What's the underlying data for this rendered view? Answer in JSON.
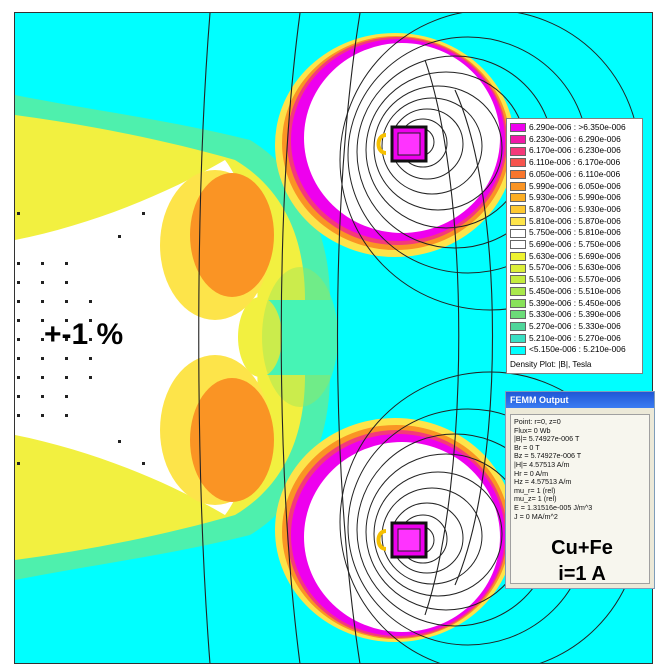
{
  "accuracy_label": "+-1 %",
  "material_label": "Cu+Fe",
  "current_label": "i=1 A",
  "legend": {
    "title": "Density Plot: |B|, Tesla",
    "entries": [
      {
        "label": "6.290e-006 : >6.350e-006",
        "color": "#ee00ee"
      },
      {
        "label": "6.230e-006 : 6.290e-006",
        "color": "#f01aa8"
      },
      {
        "label": "6.170e-006 : 6.230e-006",
        "color": "#f43a7a"
      },
      {
        "label": "6.110e-006 : 6.170e-006",
        "color": "#f6544e"
      },
      {
        "label": "6.050e-006 : 6.110e-006",
        "color": "#f8752c"
      },
      {
        "label": "5.990e-006 : 6.050e-006",
        "color": "#fa9424"
      },
      {
        "label": "5.930e-006 : 5.990e-006",
        "color": "#fcae24"
      },
      {
        "label": "5.870e-006 : 5.930e-006",
        "color": "#fdc830"
      },
      {
        "label": "5.810e-006 : 5.870e-006",
        "color": "#fde44a"
      },
      {
        "label": "5.750e-006 : 5.810e-006",
        "color": "#ffffff"
      },
      {
        "label": "5.690e-006 : 5.750e-006",
        "color": "#ffffff"
      },
      {
        "label": "5.630e-006 : 5.690e-006",
        "color": "#eef230"
      },
      {
        "label": "5.570e-006 : 5.630e-006",
        "color": "#dcef3a"
      },
      {
        "label": "5.510e-006 : 5.570e-006",
        "color": "#c4ec3e"
      },
      {
        "label": "5.450e-006 : 5.510e-006",
        "color": "#a9e84c"
      },
      {
        "label": "5.390e-006 : 5.450e-006",
        "color": "#88e25a"
      },
      {
        "label": "5.330e-006 : 5.390e-006",
        "color": "#6bdc78"
      },
      {
        "label": "5.270e-006 : 5.330e-006",
        "color": "#4fd69a"
      },
      {
        "label": "5.210e-006 : 5.270e-006",
        "color": "#3ae0c4"
      },
      {
        "label": "<5.150e-006 : 5.210e-006",
        "color": "#00ffff"
      }
    ]
  },
  "femm_output": {
    "title": "FEMM Output",
    "lines": [
      "Point: r=0, z=0",
      "Flux= 0 Wb",
      "|B|= 5.74927e-006 T",
      "Br = 0 T",
      "Bz = 5.74927e-006 T",
      "|H|= 4.57513 A/m",
      "Hr = 0 A/m",
      "Hz = 4.57513 A/m",
      "mu_r= 1 (rel)",
      "mu_z= 1 (rel)",
      "E = 1.31516e-005 J/m^3",
      "J = 0 MA/m^2"
    ]
  },
  "colors": {
    "background_field": "#00ffff",
    "plateau": "#ffffff",
    "coil": "#ee00ee",
    "flux_lines": "#222222"
  }
}
